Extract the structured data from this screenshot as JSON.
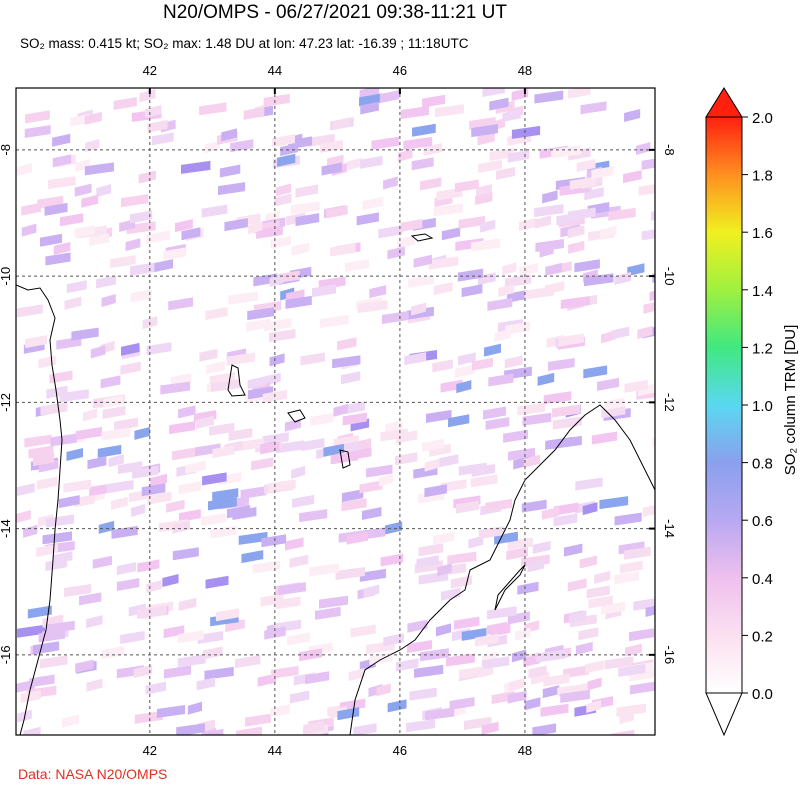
{
  "header": {
    "title": "N20/OMPS - 06/27/2021 09:38-11:21 UT",
    "subtitle": "SO₂ mass: 0.415 kt; SO₂ max: 1.48 DU at lon: 47.23 lat: -16.39 ; 11:18UTC"
  },
  "map": {
    "lonlim": [
      39.86,
      50.08
    ],
    "latlim": [
      -17.27,
      -7.02
    ],
    "lonticks": [
      42,
      44,
      46,
      48
    ],
    "latticks": [
      -8,
      -10,
      -12,
      -14,
      -16
    ]
  },
  "colorbar": {
    "label": "SO₂ column TRM [DU]",
    "lim": [
      0,
      2
    ],
    "ticks": [
      {
        "value": 0,
        "label": "0.0"
      },
      {
        "value": 0.2,
        "label": "0.2"
      },
      {
        "value": 0.4,
        "label": "0.4"
      },
      {
        "value": 0.6,
        "label": "0.6"
      },
      {
        "value": 0.8,
        "label": "0.8"
      },
      {
        "value": 1,
        "label": "1.0"
      },
      {
        "value": 1.2,
        "label": "1.2"
      },
      {
        "value": 1.4,
        "label": "1.4"
      },
      {
        "value": 1.6,
        "label": "1.6"
      },
      {
        "value": 1.8,
        "label": "1.8"
      },
      {
        "value": 2,
        "label": "2.0"
      }
    ]
  },
  "credit": "Data: NASA N20/OMPS"
}
